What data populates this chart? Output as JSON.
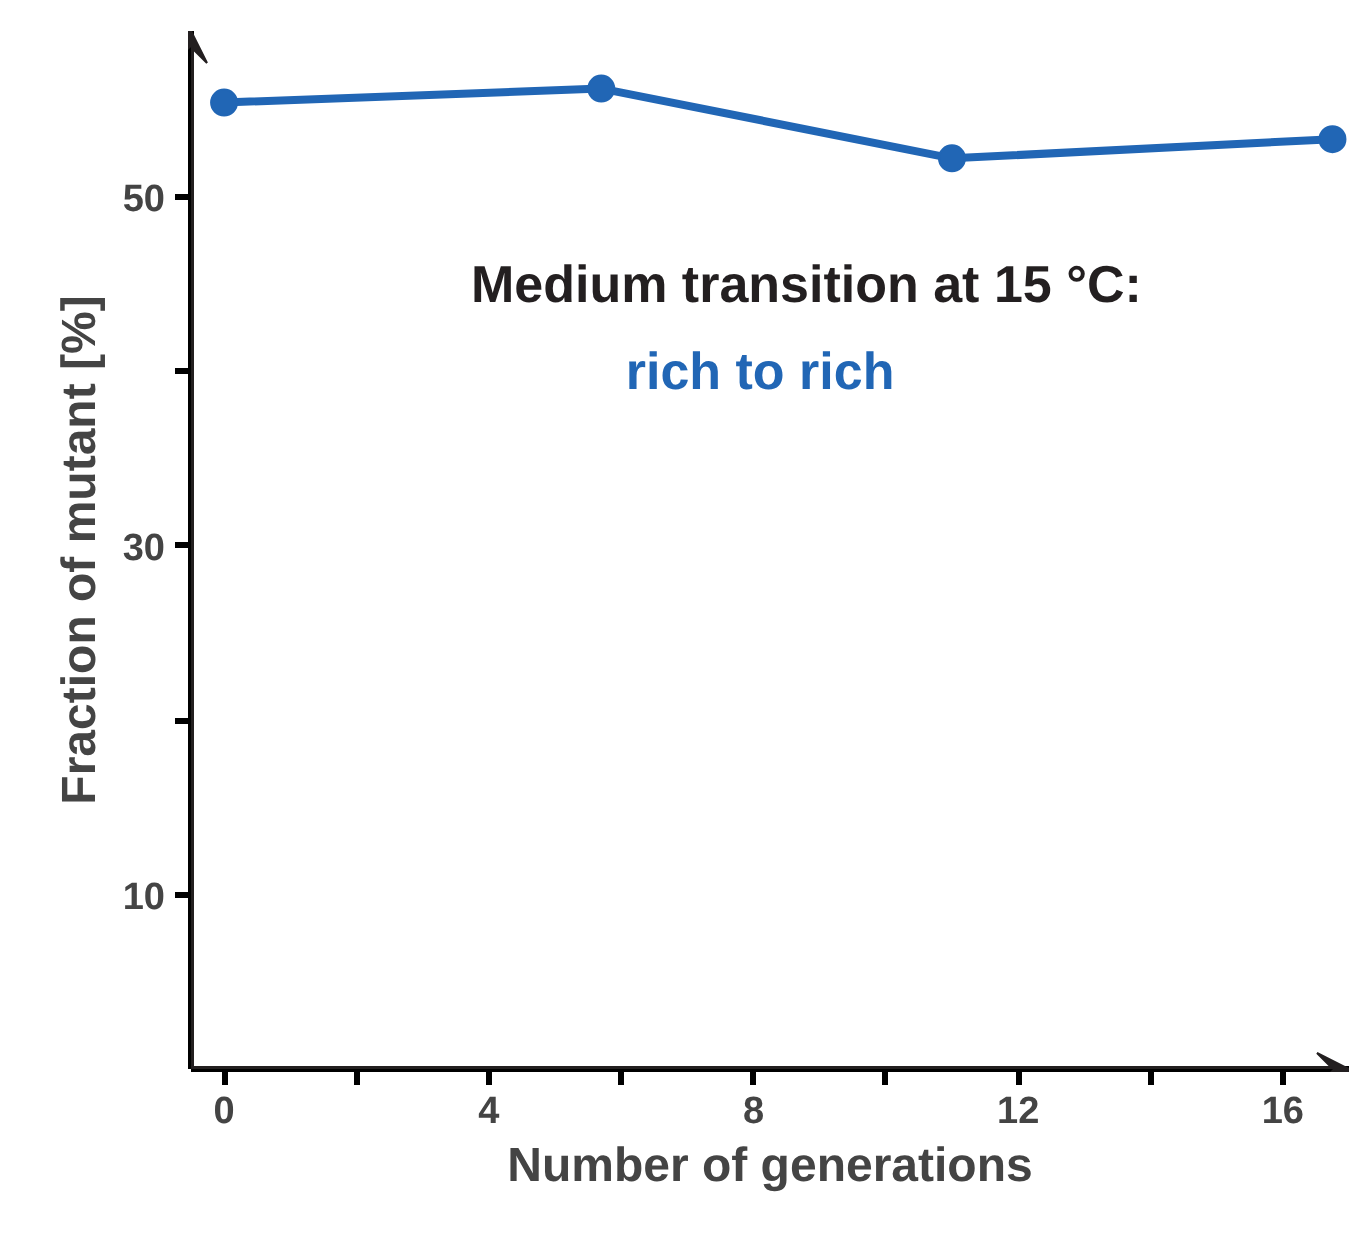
{
  "chart_data": {
    "type": "line",
    "xlabel": "Number of generations",
    "ylabel": "Fraction of mutant [%]",
    "annotations": [
      "Medium transition at 15 °C:"
    ],
    "series": [
      {
        "name": "rich to rich",
        "color": "#2166b5",
        "x": [
          0,
          5.7,
          11.0,
          16.75
        ],
        "values": [
          55.4,
          56.2,
          52.2,
          53.3
        ]
      }
    ],
    "xlim": [
      -0.5,
      17
    ],
    "ylim": [
      0,
      59.5
    ],
    "xticks": [
      0,
      {
        "value": 2,
        "label": null
      },
      4,
      {
        "value": 6,
        "label": null
      },
      8,
      {
        "value": 10,
        "label": null
      },
      12,
      {
        "value": 14,
        "label": null
      },
      16
    ],
    "yticks": [
      10,
      {
        "value": 20,
        "label": null
      },
      30,
      {
        "value": 40,
        "label": null
      },
      50
    ],
    "grid": false,
    "marker": "circle",
    "line_style": "solid",
    "legend": false
  }
}
